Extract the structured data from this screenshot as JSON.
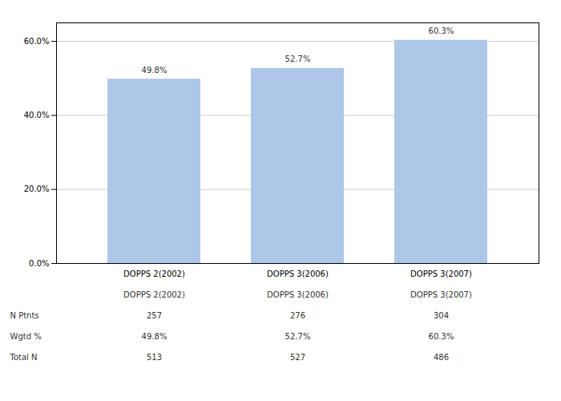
{
  "chart_data": {
    "type": "bar",
    "categories": [
      "DOPPS 2(2002)",
      "DOPPS 3(2006)",
      "DOPPS 3(2007)"
    ],
    "values": [
      49.8,
      52.7,
      60.3
    ],
    "value_labels": [
      "49.8%",
      "52.7%",
      "60.3%"
    ],
    "data_labels": true,
    "color": "#aec6e8",
    "ylim": [
      0,
      65
    ],
    "yticks": [
      {
        "value": 0,
        "label": "0.0%"
      },
      {
        "value": 20,
        "label": "20.0%"
      },
      {
        "value": 40,
        "label": "40.0%"
      },
      {
        "value": 60,
        "label": "60.0%"
      }
    ],
    "grid": true,
    "table": {
      "row_labels": [
        "N Ptnts",
        "Wgtd %",
        "Total N"
      ],
      "rows": [
        [
          "257",
          "276",
          "304"
        ],
        [
          "49.8%",
          "52.7%",
          "60.3%"
        ],
        [
          "513",
          "527",
          "486"
        ]
      ]
    }
  }
}
